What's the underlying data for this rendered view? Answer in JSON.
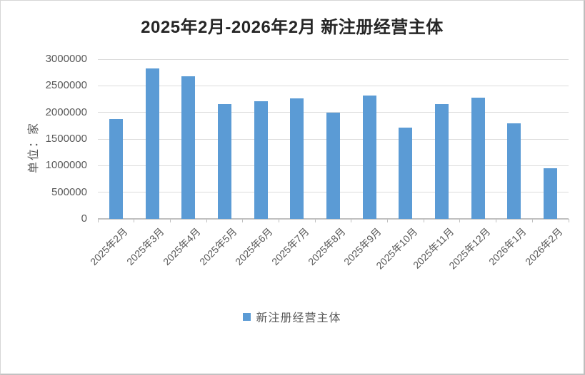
{
  "title": "2025年2月-2026年2月 新注册经营主体",
  "y_axis_title": "单位：家",
  "legend": {
    "label": "新注册经营主体",
    "swatch_color": "#5B9BD5"
  },
  "colors": {
    "bar": "#5B9BD5",
    "gridline": "#DCDCDC",
    "axis": "#C0C0C0",
    "tick_label": "#595959",
    "title_text": "#262626",
    "background": "#FFFFFF"
  },
  "chart_data": {
    "type": "bar",
    "title": "2025年2月-2026年2月 新注册经营主体",
    "xlabel": "",
    "ylabel": "单位：家",
    "categories": [
      "2025年2月",
      "2025年3月",
      "2025年4月",
      "2025年5月",
      "2025年6月",
      "2025年7月",
      "2025年8月",
      "2025年9月",
      "2025年10月",
      "2025年11月",
      "2025年12月",
      "2026年1月",
      "2026年2月"
    ],
    "series": [
      {
        "name": "新注册经营主体",
        "values": [
          1880000,
          2820000,
          2680000,
          2150000,
          2210000,
          2260000,
          2000000,
          2320000,
          1720000,
          2150000,
          2280000,
          1790000,
          950000
        ]
      }
    ],
    "ylim": [
      0,
      3000000
    ],
    "yticks": [
      0,
      500000,
      1000000,
      1500000,
      2000000,
      2500000,
      3000000
    ],
    "ytick_labels": [
      "0",
      "500000",
      "1000000",
      "1500000",
      "2000000",
      "2500000",
      "3000000"
    ],
    "grid": true,
    "legend_position": "bottom"
  }
}
